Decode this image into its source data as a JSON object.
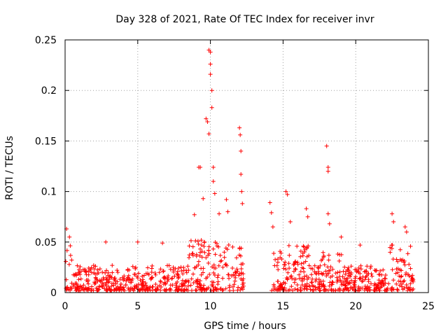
{
  "chart_data": {
    "type": "scatter",
    "title": "Day 328 of 2021, Rate Of TEC Index for receiver invr",
    "xlabel": "GPS time / hours",
    "ylabel": "ROTI / TECUs",
    "xlim": [
      0,
      25
    ],
    "ylim": [
      0,
      0.25
    ],
    "x_ticks": [
      0,
      5,
      10,
      15,
      20,
      25
    ],
    "x_tick_labels": [
      "0",
      "5",
      "10",
      "15",
      "20",
      "25"
    ],
    "y_ticks": [
      0,
      0.05,
      0.1,
      0.15,
      0.2,
      0.25
    ],
    "y_tick_labels": [
      "0",
      "0.05",
      "0.1",
      "0.15",
      "0.2",
      "0.25"
    ],
    "grid": true,
    "marker": "+",
    "color": "#ff0000",
    "data_gap_hours": [
      12.3,
      14.2
    ],
    "series": [
      {
        "name": "ROTI",
        "notable_points": [
          {
            "x": 0.1,
            "y": 0.063
          },
          {
            "x": 0.3,
            "y": 0.055
          },
          {
            "x": 2.8,
            "y": 0.05
          },
          {
            "x": 5.0,
            "y": 0.05
          },
          {
            "x": 6.7,
            "y": 0.049
          },
          {
            "x": 8.9,
            "y": 0.077
          },
          {
            "x": 9.2,
            "y": 0.124
          },
          {
            "x": 9.3,
            "y": 0.124
          },
          {
            "x": 9.5,
            "y": 0.093
          },
          {
            "x": 9.7,
            "y": 0.172
          },
          {
            "x": 9.8,
            "y": 0.169
          },
          {
            "x": 9.9,
            "y": 0.157
          },
          {
            "x": 9.9,
            "y": 0.24
          },
          {
            "x": 10.0,
            "y": 0.238
          },
          {
            "x": 10.0,
            "y": 0.226
          },
          {
            "x": 10.0,
            "y": 0.216
          },
          {
            "x": 10.1,
            "y": 0.2
          },
          {
            "x": 10.1,
            "y": 0.183
          },
          {
            "x": 10.2,
            "y": 0.124
          },
          {
            "x": 10.2,
            "y": 0.11
          },
          {
            "x": 10.3,
            "y": 0.098
          },
          {
            "x": 10.6,
            "y": 0.078
          },
          {
            "x": 11.1,
            "y": 0.092
          },
          {
            "x": 11.2,
            "y": 0.08
          },
          {
            "x": 12.0,
            "y": 0.163
          },
          {
            "x": 12.05,
            "y": 0.156
          },
          {
            "x": 12.1,
            "y": 0.14
          },
          {
            "x": 12.1,
            "y": 0.117
          },
          {
            "x": 12.15,
            "y": 0.1
          },
          {
            "x": 12.2,
            "y": 0.088
          },
          {
            "x": 14.1,
            "y": 0.089
          },
          {
            "x": 14.2,
            "y": 0.079
          },
          {
            "x": 14.3,
            "y": 0.065
          },
          {
            "x": 15.2,
            "y": 0.1
          },
          {
            "x": 15.3,
            "y": 0.097
          },
          {
            "x": 15.5,
            "y": 0.07
          },
          {
            "x": 16.6,
            "y": 0.083
          },
          {
            "x": 16.7,
            "y": 0.075
          },
          {
            "x": 18.0,
            "y": 0.145
          },
          {
            "x": 18.1,
            "y": 0.124
          },
          {
            "x": 18.1,
            "y": 0.12
          },
          {
            "x": 18.1,
            "y": 0.078
          },
          {
            "x": 18.2,
            "y": 0.068
          },
          {
            "x": 19.0,
            "y": 0.055
          },
          {
            "x": 20.3,
            "y": 0.047
          },
          {
            "x": 22.5,
            "y": 0.078
          },
          {
            "x": 22.6,
            "y": 0.07
          },
          {
            "x": 23.4,
            "y": 0.065
          },
          {
            "x": 23.5,
            "y": 0.06
          }
        ]
      }
    ]
  }
}
